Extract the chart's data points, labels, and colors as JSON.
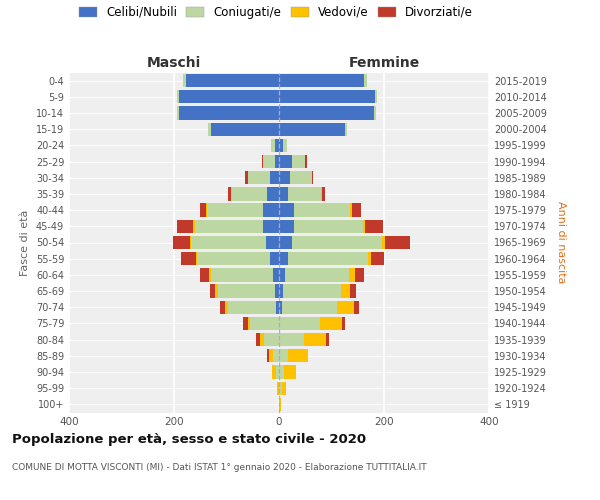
{
  "age_groups": [
    "100+",
    "95-99",
    "90-94",
    "85-89",
    "80-84",
    "75-79",
    "70-74",
    "65-69",
    "60-64",
    "55-59",
    "50-54",
    "45-49",
    "40-44",
    "35-39",
    "30-34",
    "25-29",
    "20-24",
    "15-19",
    "10-14",
    "5-9",
    "0-4"
  ],
  "birth_years": [
    "≤ 1919",
    "1920-1924",
    "1925-1929",
    "1930-1934",
    "1935-1939",
    "1940-1944",
    "1945-1949",
    "1950-1954",
    "1955-1959",
    "1960-1964",
    "1965-1969",
    "1970-1974",
    "1975-1979",
    "1980-1984",
    "1985-1989",
    "1990-1994",
    "1995-1999",
    "2000-2004",
    "2005-2009",
    "2010-2014",
    "2015-2019"
  ],
  "male_celibi": [
    0,
    0,
    0,
    0,
    0,
    0,
    5,
    8,
    12,
    18,
    25,
    30,
    30,
    22,
    18,
    8,
    8,
    130,
    190,
    190,
    178
  ],
  "male_coniugati": [
    0,
    0,
    5,
    12,
    28,
    55,
    92,
    108,
    118,
    138,
    142,
    130,
    108,
    68,
    42,
    22,
    8,
    5,
    5,
    5,
    5
  ],
  "male_vedovi": [
    0,
    3,
    8,
    8,
    8,
    5,
    5,
    5,
    3,
    3,
    3,
    3,
    2,
    2,
    0,
    0,
    0,
    0,
    0,
    0,
    0
  ],
  "male_divorziati": [
    0,
    0,
    0,
    3,
    8,
    8,
    10,
    10,
    18,
    28,
    32,
    32,
    10,
    5,
    5,
    3,
    0,
    0,
    0,
    0,
    0
  ],
  "female_nubili": [
    0,
    0,
    0,
    0,
    0,
    0,
    5,
    8,
    12,
    18,
    25,
    28,
    28,
    18,
    20,
    25,
    8,
    125,
    180,
    182,
    162
  ],
  "female_coniugate": [
    0,
    5,
    10,
    18,
    48,
    78,
    105,
    110,
    122,
    152,
    172,
    132,
    108,
    62,
    42,
    25,
    8,
    5,
    5,
    5,
    5
  ],
  "female_vedove": [
    3,
    8,
    22,
    38,
    42,
    42,
    32,
    18,
    10,
    5,
    5,
    3,
    3,
    2,
    0,
    0,
    0,
    0,
    0,
    0,
    0
  ],
  "female_divorziate": [
    0,
    0,
    0,
    0,
    5,
    5,
    10,
    10,
    18,
    25,
    48,
    35,
    18,
    5,
    3,
    3,
    0,
    0,
    0,
    0,
    0
  ],
  "color_celibi": "#4472C4",
  "color_coniugati": "#bdd7a3",
  "color_vedovi": "#ffc000",
  "color_divorziati": "#c0392b",
  "legend_labels": [
    "Celibi/Nubili",
    "Coniugati/e",
    "Vedovi/e",
    "Divorziati/e"
  ],
  "title": "Popolazione per età, sesso e stato civile - 2020",
  "subtitle": "COMUNE DI MOTTA VISCONTI (MI) - Dati ISTAT 1° gennaio 2020 - Elaborazione TUTTITALIA.IT",
  "header_left": "Maschi",
  "header_right": "Femmine",
  "ylabel_left": "Fasce di età",
  "ylabel_right": "Anni di nascita",
  "xlim": 400,
  "bg_color": "#ffffff",
  "plot_bg_color": "#efefef"
}
